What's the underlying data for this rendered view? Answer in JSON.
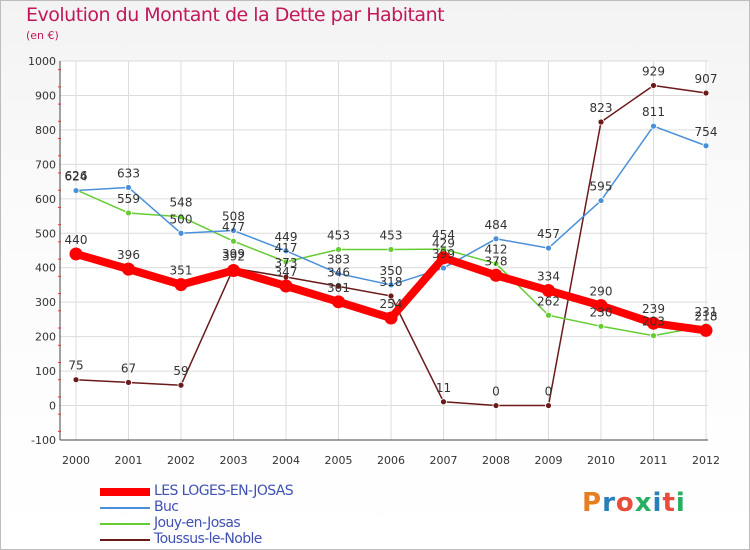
{
  "header": {
    "title": "Evolution du Montant de la Dette par Habitant",
    "subtitle": "(en €)"
  },
  "brand": {
    "text": "Proxiti",
    "colors": [
      "#e67e22",
      "#2980b9",
      "#e74c3c",
      "#27ae60",
      "#2980b9",
      "#e74c3c",
      "#27ae60"
    ]
  },
  "chart_data": {
    "type": "line",
    "x": [
      "2000",
      "2001",
      "2002",
      "2003",
      "2004",
      "2005",
      "2006",
      "2007",
      "2008",
      "2009",
      "2010",
      "2011",
      "2012"
    ],
    "ylim": [
      -100,
      1000
    ],
    "yticks": [
      -100,
      0,
      100,
      200,
      300,
      400,
      500,
      600,
      700,
      800,
      900,
      1000
    ],
    "grid": true,
    "legend_position": "bottom-left",
    "series": [
      {
        "name": "LES LOGES-EN-JOSAS",
        "color": "#ff0000",
        "values": [
          440,
          396,
          351,
          392,
          347,
          301,
          254,
          429,
          378,
          334,
          290,
          239,
          218
        ]
      },
      {
        "name": "Buc",
        "color": "#4a90d9",
        "values": [
          624,
          633,
          500,
          508,
          449,
          383,
          350,
          399,
          484,
          457,
          595,
          811,
          754
        ]
      },
      {
        "name": "Jouy-en-Josas",
        "color": "#66cc33",
        "values": [
          626,
          559,
          548,
          477,
          417,
          453,
          453,
          454,
          412,
          262,
          230,
          203,
          231
        ]
      },
      {
        "name": "Toussus-le-Noble",
        "color": "#6b1a1a",
        "values": [
          75,
          67,
          59,
          399,
          373,
          346,
          318,
          11,
          0,
          0,
          823,
          929,
          907
        ]
      }
    ]
  }
}
